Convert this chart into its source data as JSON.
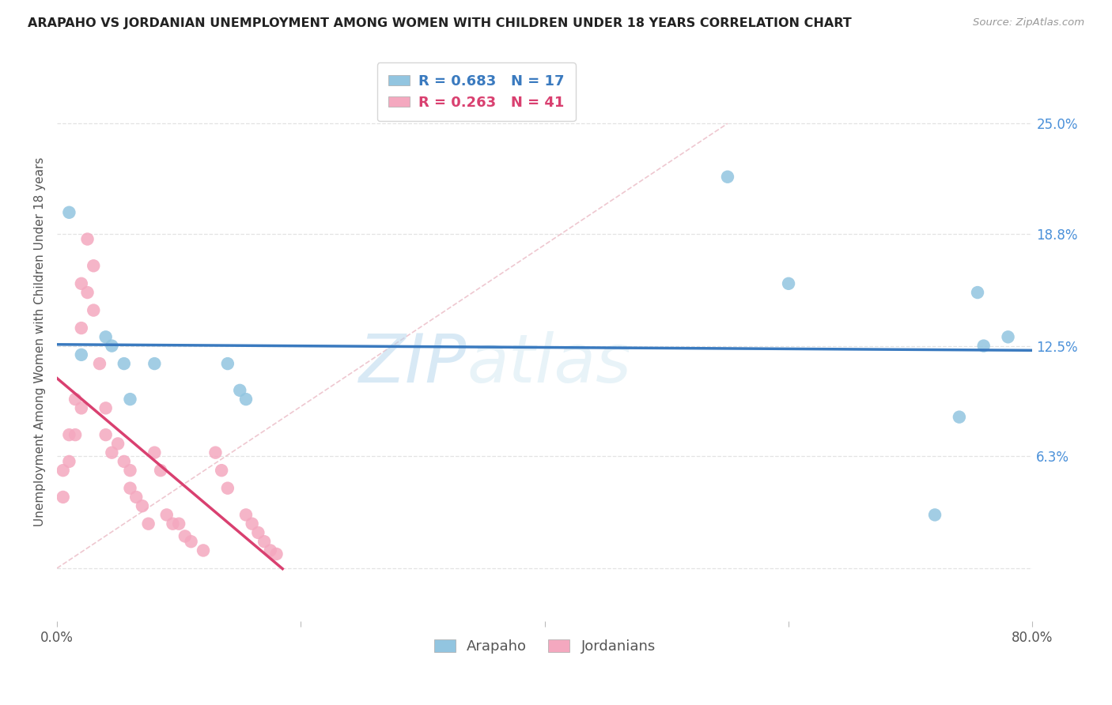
{
  "title": "ARAPAHO VS JORDANIAN UNEMPLOYMENT AMONG WOMEN WITH CHILDREN UNDER 18 YEARS CORRELATION CHART",
  "source": "Source: ZipAtlas.com",
  "ylabel": "Unemployment Among Women with Children Under 18 years",
  "watermark": "ZIPatlas",
  "xlim": [
    0.0,
    0.8
  ],
  "ylim": [
    -0.03,
    0.285
  ],
  "xticks": [
    0.0,
    0.2,
    0.4,
    0.6,
    0.8
  ],
  "xticklabels": [
    "0.0%",
    "",
    "",
    "",
    "80.0%"
  ],
  "yticks_right": [
    0.0,
    0.063,
    0.125,
    0.188,
    0.25
  ],
  "yticklabels_right": [
    "",
    "6.3%",
    "12.5%",
    "18.8%",
    "25.0%"
  ],
  "arapaho_color": "#92c5e0",
  "jordanian_color": "#f4a8bf",
  "arapaho_line_color": "#3a7abf",
  "jordanian_line_color": "#d94070",
  "diag_color": "#e8b0bc",
  "legend_arapaho_R": "R = 0.683",
  "legend_arapaho_N": "N = 17",
  "legend_jordanian_R": "R = 0.263",
  "legend_jordanian_N": "N = 41",
  "arapaho_x": [
    0.01,
    0.02,
    0.04,
    0.045,
    0.055,
    0.06,
    0.08,
    0.14,
    0.15,
    0.155,
    0.55,
    0.6,
    0.72,
    0.74,
    0.755,
    0.76,
    0.78
  ],
  "arapaho_y": [
    0.2,
    0.12,
    0.13,
    0.125,
    0.115,
    0.095,
    0.115,
    0.115,
    0.1,
    0.095,
    0.22,
    0.16,
    0.03,
    0.085,
    0.155,
    0.125,
    0.13
  ],
  "jordanian_x": [
    0.005,
    0.005,
    0.01,
    0.01,
    0.015,
    0.015,
    0.02,
    0.02,
    0.02,
    0.025,
    0.025,
    0.03,
    0.03,
    0.035,
    0.04,
    0.04,
    0.045,
    0.05,
    0.055,
    0.06,
    0.06,
    0.065,
    0.07,
    0.075,
    0.08,
    0.085,
    0.09,
    0.095,
    0.1,
    0.105,
    0.11,
    0.12,
    0.13,
    0.135,
    0.14,
    0.155,
    0.16,
    0.165,
    0.17,
    0.175,
    0.18
  ],
  "jordanian_y": [
    0.055,
    0.04,
    0.075,
    0.06,
    0.095,
    0.075,
    0.16,
    0.135,
    0.09,
    0.185,
    0.155,
    0.17,
    0.145,
    0.115,
    0.09,
    0.075,
    0.065,
    0.07,
    0.06,
    0.055,
    0.045,
    0.04,
    0.035,
    0.025,
    0.065,
    0.055,
    0.03,
    0.025,
    0.025,
    0.018,
    0.015,
    0.01,
    0.065,
    0.055,
    0.045,
    0.03,
    0.025,
    0.02,
    0.015,
    0.01,
    0.008
  ],
  "background_color": "#ffffff",
  "grid_color": "#dddddd",
  "grid_style": "--"
}
